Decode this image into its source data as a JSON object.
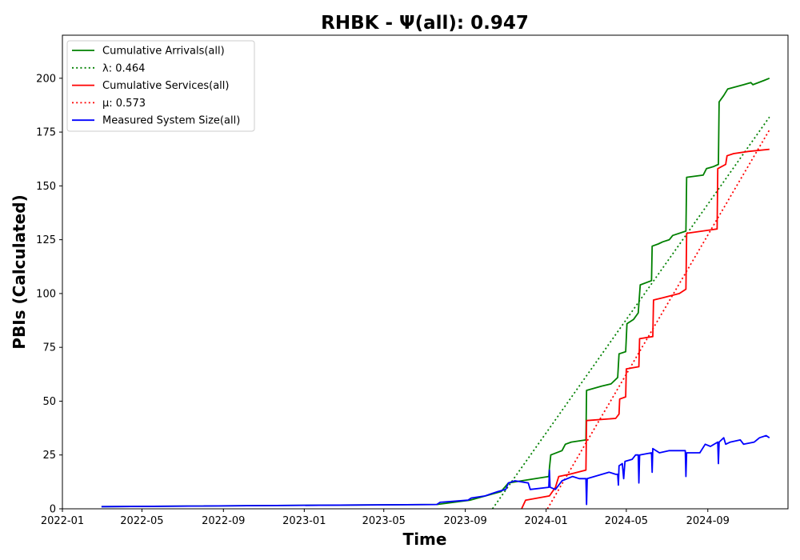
{
  "chart_data": {
    "type": "line",
    "title": "RHBK -  Ψ(all): 0.947",
    "xlabel": "Time",
    "ylabel": "PBIs (Calculated)",
    "xlim": [
      "2022-01-01",
      "2024-12-31"
    ],
    "ylim": [
      0,
      220
    ],
    "xticks": [
      "2022-01",
      "2022-05",
      "2022-09",
      "2023-01",
      "2023-05",
      "2023-09",
      "2024-01",
      "2024-05",
      "2024-09"
    ],
    "yticks": [
      0,
      25,
      50,
      75,
      100,
      125,
      150,
      175,
      200
    ],
    "grid": false,
    "legend_position": "upper-left",
    "series": [
      {
        "name": "Cumulative Arrivals(all)",
        "color": "#008000",
        "style": "solid",
        "points": [
          [
            "2022-03-01",
            1
          ],
          [
            "2023-07-20",
            2
          ],
          [
            "2023-09-08",
            4
          ],
          [
            "2023-10-25",
            8
          ],
          [
            "2023-11-05",
            12
          ],
          [
            "2023-11-25",
            13
          ],
          [
            "2024-01-05",
            15
          ],
          [
            "2024-01-06",
            19
          ],
          [
            "2024-01-08",
            25
          ],
          [
            "2024-01-25",
            27
          ],
          [
            "2024-01-30",
            30
          ],
          [
            "2024-02-08",
            31
          ],
          [
            "2024-03-01",
            32
          ],
          [
            "2024-03-02",
            55
          ],
          [
            "2024-03-25",
            57
          ],
          [
            "2024-04-08",
            58
          ],
          [
            "2024-04-18",
            61
          ],
          [
            "2024-04-20",
            72
          ],
          [
            "2024-04-30",
            73
          ],
          [
            "2024-05-02",
            86
          ],
          [
            "2024-05-12",
            88
          ],
          [
            "2024-05-19",
            91
          ],
          [
            "2024-05-22",
            104
          ],
          [
            "2024-06-08",
            106
          ],
          [
            "2024-06-09",
            122
          ],
          [
            "2024-06-18",
            123
          ],
          [
            "2024-06-25",
            124
          ],
          [
            "2024-07-05",
            125
          ],
          [
            "2024-07-10",
            127
          ],
          [
            "2024-07-30",
            129
          ],
          [
            "2024-07-31",
            154
          ],
          [
            "2024-08-25",
            155
          ],
          [
            "2024-08-30",
            158
          ],
          [
            "2024-09-10",
            159
          ],
          [
            "2024-09-17",
            160
          ],
          [
            "2024-09-18",
            189
          ],
          [
            "2024-09-25",
            192
          ],
          [
            "2024-10-01",
            195
          ],
          [
            "2024-10-25",
            197
          ],
          [
            "2024-11-05",
            198
          ],
          [
            "2024-11-08",
            197
          ],
          [
            "2024-11-25",
            199
          ],
          [
            "2024-12-03",
            200
          ]
        ]
      },
      {
        "name": "λ: 0.464",
        "color": "#008000",
        "style": "dotted",
        "points": [
          [
            "2023-10-12",
            0
          ],
          [
            "2024-12-03",
            182
          ]
        ]
      },
      {
        "name": "Cumulative Services(all)",
        "color": "#ff0000",
        "style": "solid",
        "points": [
          [
            "2023-11-25",
            0
          ],
          [
            "2023-12-01",
            4
          ],
          [
            "2024-01-06",
            6
          ],
          [
            "2024-01-15",
            10
          ],
          [
            "2024-01-20",
            15
          ],
          [
            "2024-02-05",
            16
          ],
          [
            "2024-03-01",
            18
          ],
          [
            "2024-03-02",
            41
          ],
          [
            "2024-04-15",
            42
          ],
          [
            "2024-04-20",
            44
          ],
          [
            "2024-04-21",
            51
          ],
          [
            "2024-04-30",
            52
          ],
          [
            "2024-05-01",
            65
          ],
          [
            "2024-05-20",
            66
          ],
          [
            "2024-05-21",
            79
          ],
          [
            "2024-06-10",
            80
          ],
          [
            "2024-06-11",
            97
          ],
          [
            "2024-06-25",
            98
          ],
          [
            "2024-07-20",
            100
          ],
          [
            "2024-07-30",
            102
          ],
          [
            "2024-07-31",
            128
          ],
          [
            "2024-09-15",
            130
          ],
          [
            "2024-09-16",
            158
          ],
          [
            "2024-09-28",
            160
          ],
          [
            "2024-09-30",
            164
          ],
          [
            "2024-10-10",
            165
          ],
          [
            "2024-11-01",
            166
          ],
          [
            "2024-12-03",
            167
          ]
        ]
      },
      {
        "name": "μ: 0.573",
        "color": "#ff0000",
        "style": "dotted",
        "points": [
          [
            "2024-01-03",
            0
          ],
          [
            "2024-12-03",
            176
          ]
        ]
      },
      {
        "name": "Measured System Size(all)",
        "color": "#0000ff",
        "style": "solid",
        "points": [
          [
            "2022-03-01",
            1
          ],
          [
            "2023-07-20",
            2
          ],
          [
            "2023-07-25",
            3
          ],
          [
            "2023-09-05",
            4
          ],
          [
            "2023-09-10",
            5
          ],
          [
            "2023-10-01",
            6
          ],
          [
            "2023-10-10",
            7
          ],
          [
            "2023-10-20",
            8
          ],
          [
            "2023-11-01",
            9
          ],
          [
            "2023-11-05",
            12
          ],
          [
            "2023-11-15",
            13
          ],
          [
            "2023-12-05",
            12
          ],
          [
            "2023-12-08",
            9
          ],
          [
            "2024-01-05",
            10
          ],
          [
            "2024-01-06",
            18
          ],
          [
            "2024-01-07",
            10
          ],
          [
            "2024-01-15",
            9
          ],
          [
            "2024-01-25",
            13
          ],
          [
            "2024-02-10",
            15
          ],
          [
            "2024-02-20",
            14
          ],
          [
            "2024-03-01",
            14
          ],
          [
            "2024-03-02",
            2
          ],
          [
            "2024-03-03",
            14
          ],
          [
            "2024-04-05",
            17
          ],
          [
            "2024-04-15",
            16
          ],
          [
            "2024-04-18",
            16
          ],
          [
            "2024-04-19",
            11
          ],
          [
            "2024-04-20",
            20
          ],
          [
            "2024-04-25",
            21
          ],
          [
            "2024-04-27",
            14
          ],
          [
            "2024-04-29",
            22
          ],
          [
            "2024-05-10",
            23
          ],
          [
            "2024-05-15",
            25
          ],
          [
            "2024-05-19",
            25
          ],
          [
            "2024-05-20",
            12
          ],
          [
            "2024-05-21",
            25
          ],
          [
            "2024-06-08",
            26
          ],
          [
            "2024-06-09",
            17
          ],
          [
            "2024-06-10",
            28
          ],
          [
            "2024-06-20",
            26
          ],
          [
            "2024-07-05",
            27
          ],
          [
            "2024-07-20",
            27
          ],
          [
            "2024-07-29",
            27
          ],
          [
            "2024-07-30",
            15
          ],
          [
            "2024-07-31",
            26
          ],
          [
            "2024-08-20",
            26
          ],
          [
            "2024-08-28",
            30
          ],
          [
            "2024-09-05",
            29
          ],
          [
            "2024-09-16",
            31
          ],
          [
            "2024-09-17",
            21
          ],
          [
            "2024-09-18",
            31
          ],
          [
            "2024-09-25",
            33
          ],
          [
            "2024-09-28",
            30
          ],
          [
            "2024-10-05",
            31
          ],
          [
            "2024-10-20",
            32
          ],
          [
            "2024-10-25",
            30
          ],
          [
            "2024-11-10",
            31
          ],
          [
            "2024-11-18",
            33
          ],
          [
            "2024-11-28",
            34
          ],
          [
            "2024-12-03",
            33
          ]
        ]
      }
    ]
  }
}
